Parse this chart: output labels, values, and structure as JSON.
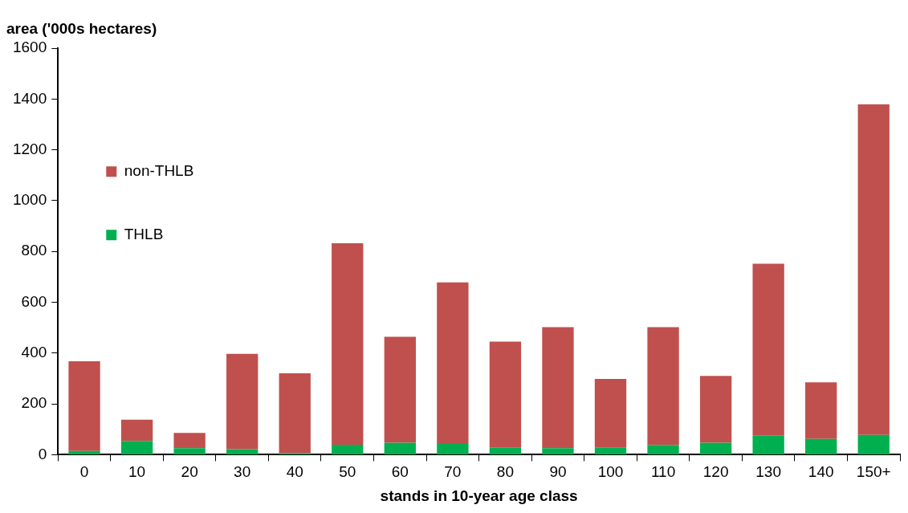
{
  "chart_data": {
    "type": "bar",
    "stacked": true,
    "ylabel": "area ('000s hectares)",
    "xlabel": "stands in 10-year age class",
    "categories": [
      "0",
      "10",
      "20",
      "30",
      "40",
      "50",
      "60",
      "70",
      "80",
      "90",
      "100",
      "110",
      "120",
      "130",
      "140",
      "150+"
    ],
    "series": [
      {
        "name": "THLB",
        "color": "#00b050",
        "values": [
          15,
          54,
          26,
          22,
          7,
          39,
          47,
          42,
          29,
          26,
          29,
          38,
          47,
          76,
          62,
          78
        ]
      },
      {
        "name": "non-THLB",
        "color": "#c0504d",
        "values": [
          353,
          84,
          60,
          375,
          313,
          793,
          417,
          636,
          416,
          476,
          269,
          464,
          263,
          676,
          223,
          1301
        ]
      }
    ],
    "ylim": [
      0,
      1600
    ],
    "yticks": [
      0,
      200,
      400,
      600,
      800,
      1000,
      1200,
      1400,
      1600
    ],
    "grid": false,
    "legend": "top"
  }
}
